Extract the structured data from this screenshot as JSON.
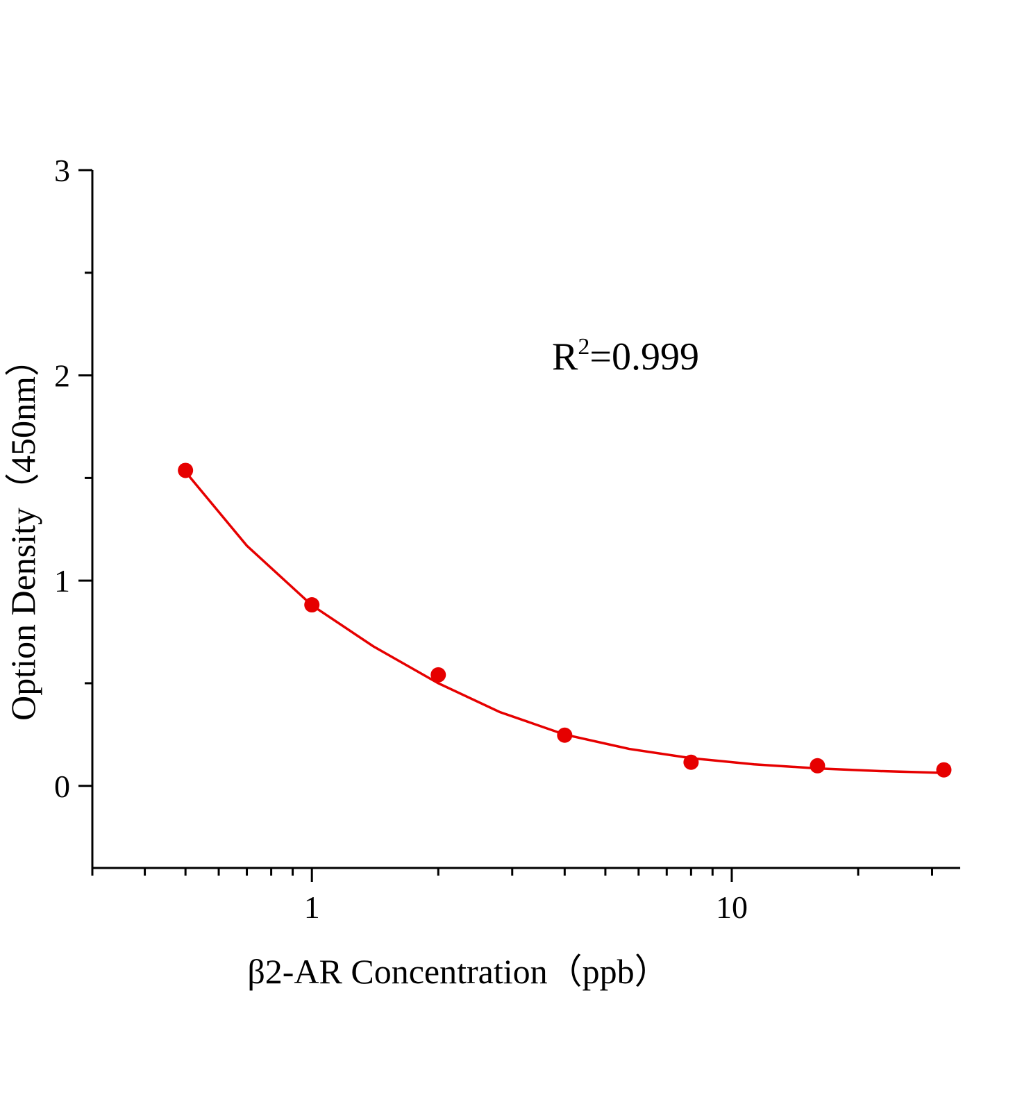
{
  "chart_data": {
    "type": "scatter",
    "x_label": "β2-AR Concentration（ppb）",
    "y_label": "Option Density（450nm）",
    "annotation": {
      "base": "R",
      "sup": "2",
      "rest": "=0.999"
    },
    "xscale": "log",
    "xlim": [
      0.3,
      35
    ],
    "ylim": [
      -0.4,
      3
    ],
    "xticks": [
      1,
      10
    ],
    "xminorticks": [
      0.3,
      0.4,
      0.5,
      0.6,
      0.7,
      0.8,
      0.9,
      2,
      3,
      4,
      5,
      6,
      7,
      8,
      9,
      20,
      30
    ],
    "yticks": [
      0,
      1,
      2,
      3
    ],
    "yminorticks": [
      0.5,
      1.5,
      2.5
    ],
    "series": [
      {
        "name": "data",
        "color": "#e60000",
        "x": [
          0.5,
          1,
          2,
          4,
          8,
          16,
          32
        ],
        "values": [
          1.537,
          0.882,
          0.541,
          0.247,
          0.115,
          0.098,
          0.078
        ]
      },
      {
        "name": "fit",
        "color": "#e60000",
        "x": [
          0.5,
          0.7,
          1,
          1.4,
          2,
          2.8,
          4,
          5.7,
          8,
          11.3,
          16,
          22.6,
          32
        ],
        "values": [
          1.53,
          1.17,
          0.88,
          0.68,
          0.5,
          0.36,
          0.25,
          0.18,
          0.135,
          0.105,
          0.085,
          0.072,
          0.063
        ]
      }
    ]
  }
}
